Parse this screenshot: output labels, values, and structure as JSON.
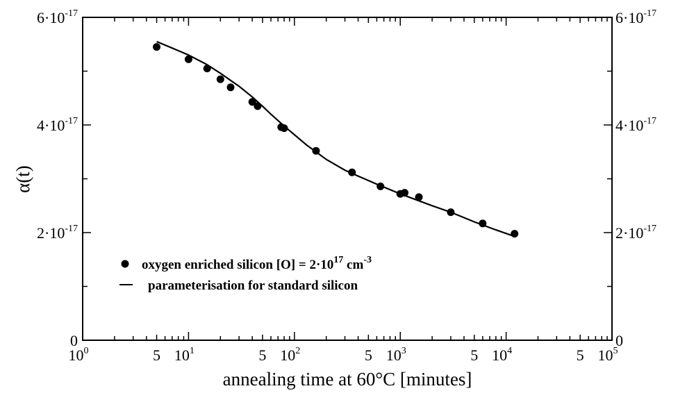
{
  "chart_data": {
    "type": "scatter",
    "title": "",
    "xlabel": "annealing time at 60°C [minutes]",
    "ylabel": "α(t)",
    "x_scale": "log",
    "xlim": [
      1,
      100000
    ],
    "ylim": [
      0,
      6e-17
    ],
    "x_ticks": [
      {
        "value": 1,
        "base": "10",
        "exp": "0"
      },
      {
        "value": 10,
        "base": "10",
        "exp": "1"
      },
      {
        "value": 100,
        "base": "10",
        "exp": "2"
      },
      {
        "value": 1000,
        "base": "10",
        "exp": "3"
      },
      {
        "value": 10000,
        "base": "10",
        "exp": "4"
      },
      {
        "value": 100000,
        "base": "10",
        "exp": "5"
      }
    ],
    "x_minor_labels": [
      {
        "value": 5,
        "label": "5"
      },
      {
        "value": 50,
        "label": "5"
      },
      {
        "value": 500,
        "label": "5"
      },
      {
        "value": 5000,
        "label": "5"
      },
      {
        "value": 50000,
        "label": "5"
      }
    ],
    "y_ticks": [
      {
        "value": 0,
        "mant": "0",
        "exp": ""
      },
      {
        "value": 2e-17,
        "mant": "2·10",
        "exp": "-17"
      },
      {
        "value": 4e-17,
        "mant": "4·10",
        "exp": "-17"
      },
      {
        "value": 6e-17,
        "mant": "6·10",
        "exp": "-17"
      }
    ],
    "grid": false,
    "legend_position": "bottom-left",
    "series": [
      {
        "name": "oxygen enriched silicon [O] = 2·10^17 cm^-3",
        "legend_text": "oxygen enriched silicon [O] = 2·10",
        "legend_sup1": "17",
        "legend_mid": " cm",
        "legend_sup2": "-3",
        "kind": "points",
        "x": [
          5,
          10,
          15,
          20,
          25,
          40,
          45,
          75,
          80,
          160,
          350,
          650,
          1000,
          1100,
          1500,
          3000,
          6000,
          12000
        ],
        "y": [
          5.45e-17,
          5.22e-17,
          5.05e-17,
          4.85e-17,
          4.7e-17,
          4.43e-17,
          4.35e-17,
          3.96e-17,
          3.94e-17,
          3.52e-17,
          3.12e-17,
          2.86e-17,
          2.72e-17,
          2.74e-17,
          2.66e-17,
          2.38e-17,
          2.17e-17,
          1.98e-17
        ]
      },
      {
        "name": "parameterisation for standard silicon",
        "kind": "line",
        "x": [
          5,
          7,
          10,
          15,
          20,
          30,
          40,
          50,
          60,
          80,
          100,
          130,
          160,
          200,
          300,
          400,
          600,
          1000,
          2000,
          3000,
          5000,
          8000,
          12000
        ],
        "y": [
          5.55e-17,
          5.43e-17,
          5.3e-17,
          5.12e-17,
          4.96e-17,
          4.72e-17,
          4.52e-17,
          4.35e-17,
          4.2e-17,
          3.98e-17,
          3.82e-17,
          3.63e-17,
          3.5e-17,
          3.36e-17,
          3.16e-17,
          3.05e-17,
          2.9e-17,
          2.72e-17,
          2.5e-17,
          2.38e-17,
          2.2e-17,
          2.05e-17,
          1.93e-17
        ]
      }
    ]
  }
}
